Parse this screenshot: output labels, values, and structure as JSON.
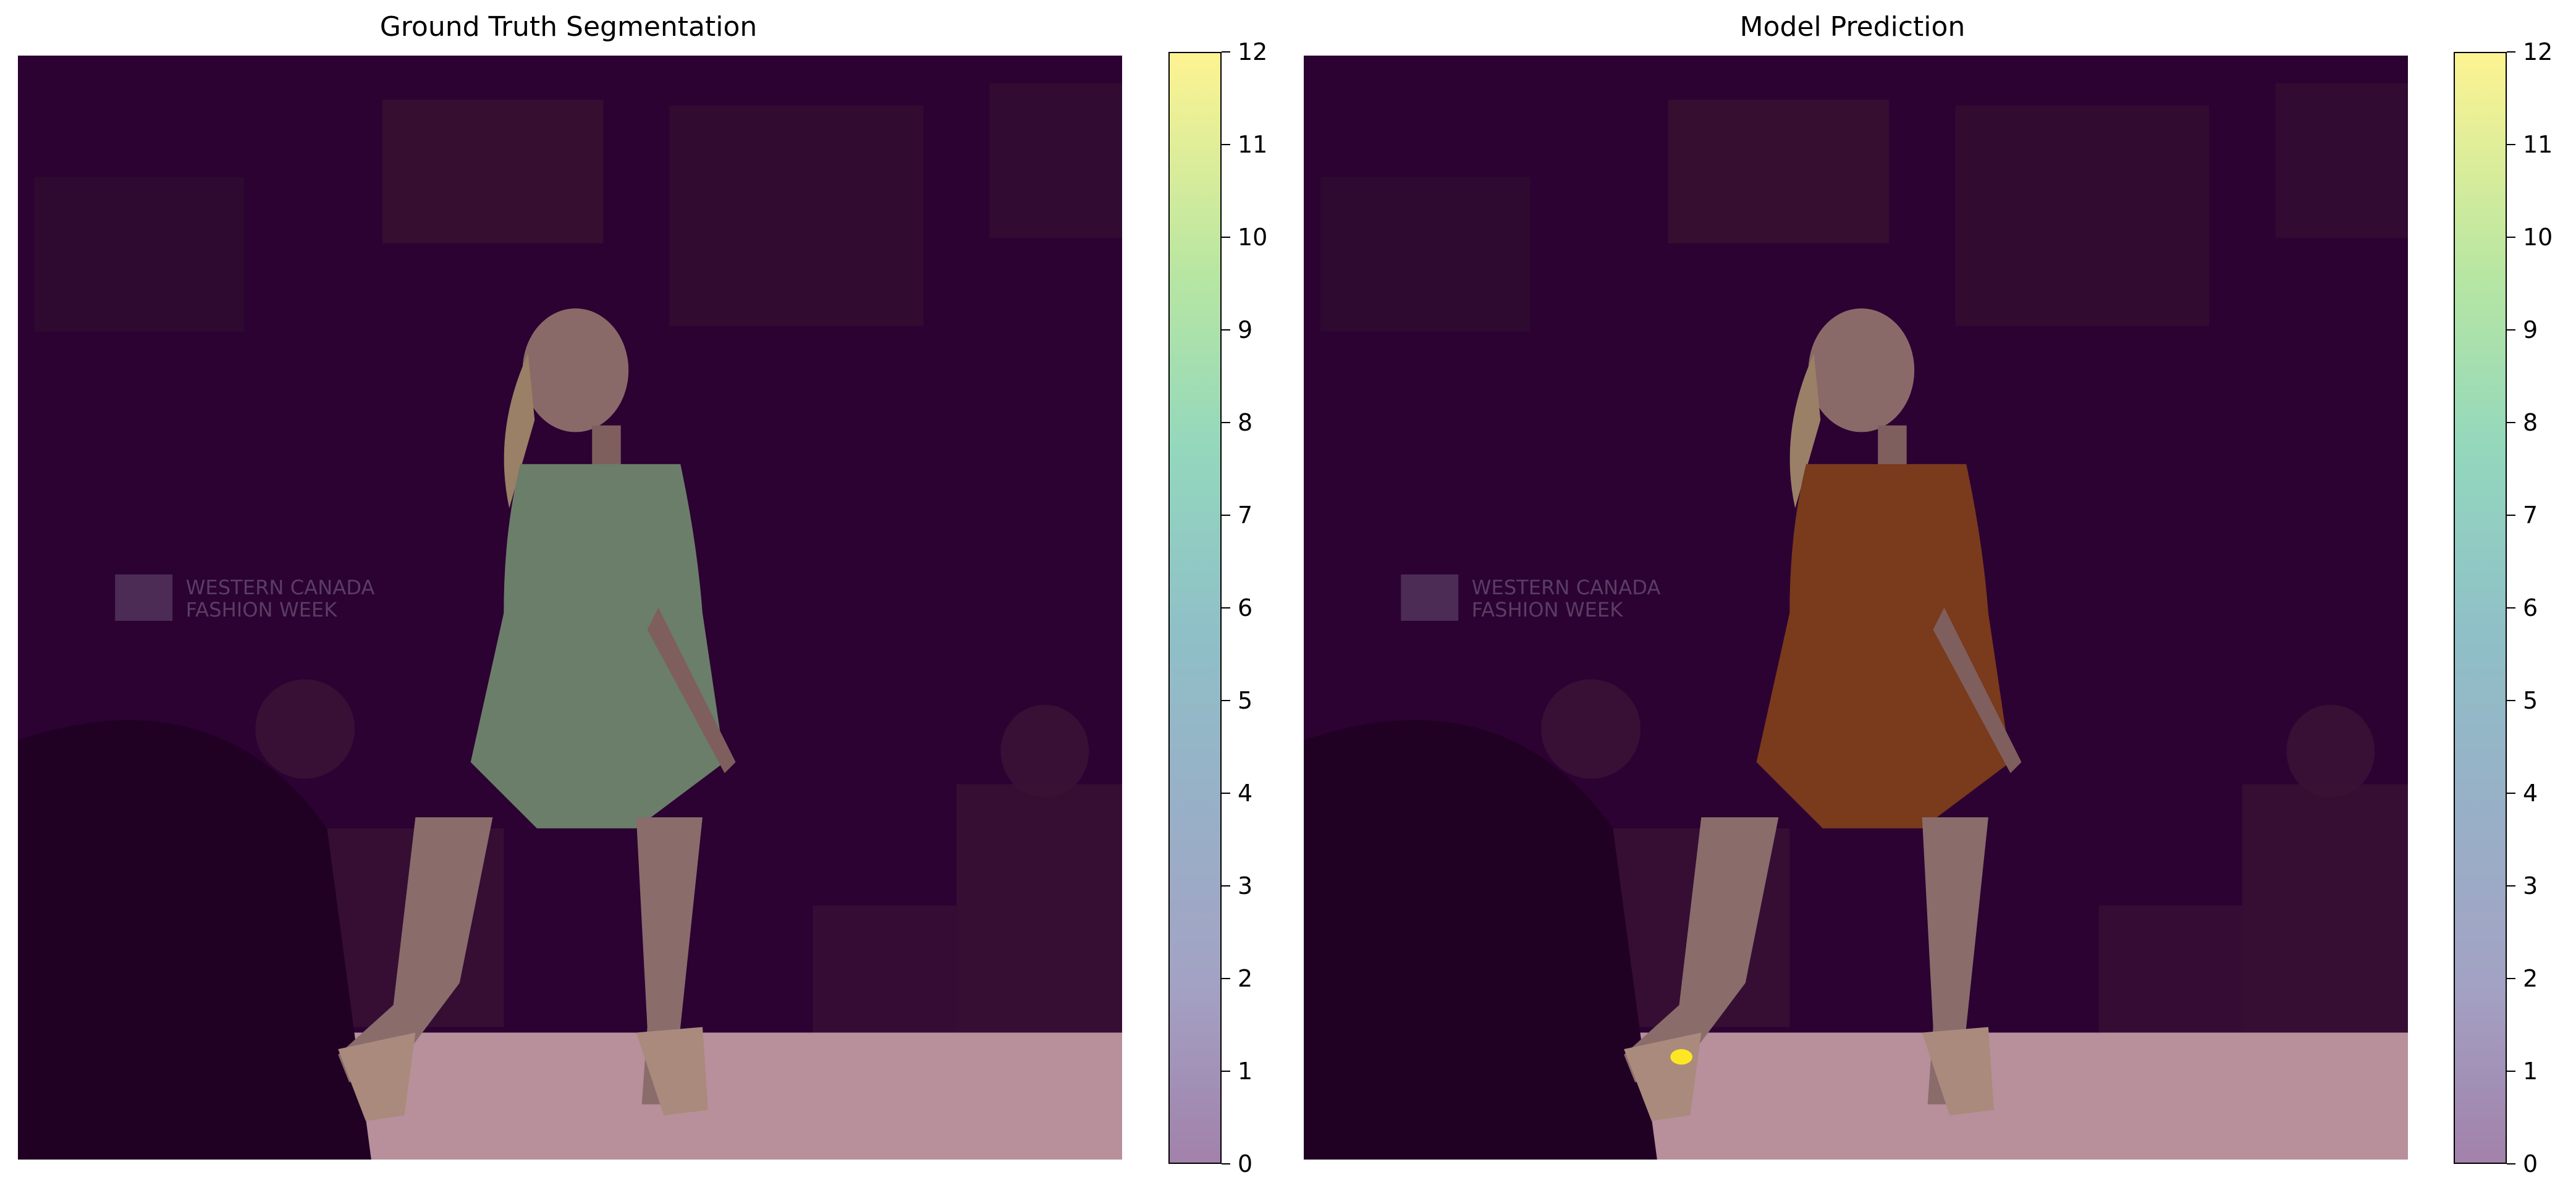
{
  "chart_data": [
    {
      "type": "heatmap",
      "title": "Ground Truth Segmentation",
      "colormap": "viridis",
      "overlay_alpha": 0.5,
      "colorbar": {
        "ticks": [
          "0",
          "1",
          "2",
          "3",
          "4",
          "5",
          "6",
          "7",
          "8",
          "9",
          "10",
          "11",
          "12"
        ],
        "vmin": 0,
        "vmax": 12
      },
      "regions": [
        {
          "label": "background",
          "class_value": 0
        },
        {
          "label": "dress",
          "class_value": 4
        }
      ],
      "watermark_text": [
        "WESTERN CANADA",
        "FASHION WEEK"
      ]
    },
    {
      "type": "heatmap",
      "title": "Model Prediction",
      "colormap": "viridis",
      "overlay_alpha": 0.5,
      "colorbar": {
        "ticks": [
          "0",
          "1",
          "2",
          "3",
          "4",
          "5",
          "6",
          "7",
          "8",
          "9",
          "10",
          "11",
          "12"
        ],
        "vmin": 0,
        "vmax": 12
      },
      "regions": [
        {
          "label": "background",
          "class_value": 0
        },
        {
          "label": "dress",
          "class_value": 0
        },
        {
          "label": "shoe spot",
          "class_value": 12
        }
      ],
      "watermark_text": [
        "WESTERN CANADA",
        "FASHION WEEK"
      ]
    }
  ],
  "colors": {
    "viridis_0": "#440154",
    "viridis_4": "#31688e",
    "viridis_12": "#fde725",
    "dress_tint_gt": "#6b7e6a",
    "dress_tint_pred": "#7a3a1c",
    "floor": "#b7909b"
  }
}
